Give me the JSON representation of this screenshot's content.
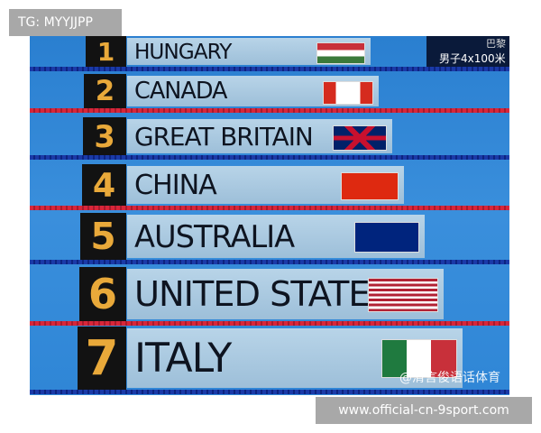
{
  "overlay_tag": "TG: MYYJJPP",
  "site_watermark": "www.official-cn-9sport.com",
  "weibo_watermark": "@清言俊语话体育",
  "tv_corner": {
    "top": "巴黎",
    "event": "男子4x100米"
  },
  "standings": [
    {
      "rank": "1",
      "country": "HUNGARY",
      "flag": "hungary"
    },
    {
      "rank": "2",
      "country": "CANADA",
      "flag": "canada"
    },
    {
      "rank": "3",
      "country": "GREAT BRITAIN",
      "flag": "uk"
    },
    {
      "rank": "4",
      "country": "CHINA",
      "flag": "china"
    },
    {
      "rank": "5",
      "country": "AUSTRALIA",
      "flag": "australia"
    },
    {
      "rank": "6",
      "country": "UNITED STATES",
      "flag": "usa"
    },
    {
      "rank": "7",
      "country": "ITALY",
      "flag": "italy"
    }
  ]
}
